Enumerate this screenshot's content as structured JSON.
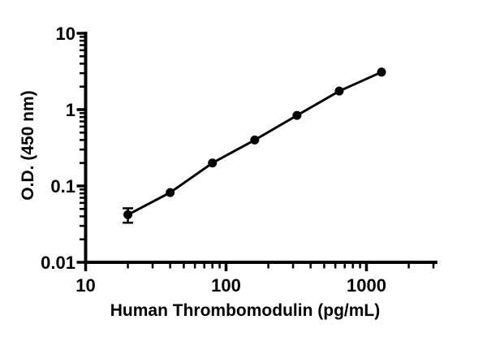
{
  "figure": {
    "background": "#ffffff",
    "ink": "#000000"
  },
  "chart_data": {
    "type": "scatter",
    "subtype": "scatter-with-connecting-line",
    "title": "",
    "xlabel": "Human Thrombomodulin (pg/mL)",
    "ylabel": "O.D. (450 nm)",
    "xscale": "log",
    "yscale": "log",
    "xlim": [
      10,
      3200
    ],
    "ylim": [
      0.01,
      10
    ],
    "x": [
      20,
      40,
      80,
      160,
      320,
      640,
      1280
    ],
    "y": [
      0.042,
      0.082,
      0.2,
      0.4,
      0.84,
      1.75,
      3.1
    ],
    "y_error": [
      0.009,
      0,
      0,
      0,
      0,
      0,
      0
    ],
    "x_major_ticks": [
      10,
      100,
      1000
    ],
    "x_major_tick_labels": [
      "10",
      "100",
      "1000"
    ],
    "y_major_ticks": [
      0.01,
      0.1,
      1,
      10
    ],
    "y_major_tick_labels": [
      "0.01",
      "0.1",
      "1",
      "10"
    ],
    "minor_ticks": "log-2-to-9-per-decade",
    "grid": false,
    "legend": null,
    "marker": "filled-circle",
    "marker_color": "#000000",
    "line_color": "#000000",
    "error_bar_style": "capped-I-beam"
  }
}
